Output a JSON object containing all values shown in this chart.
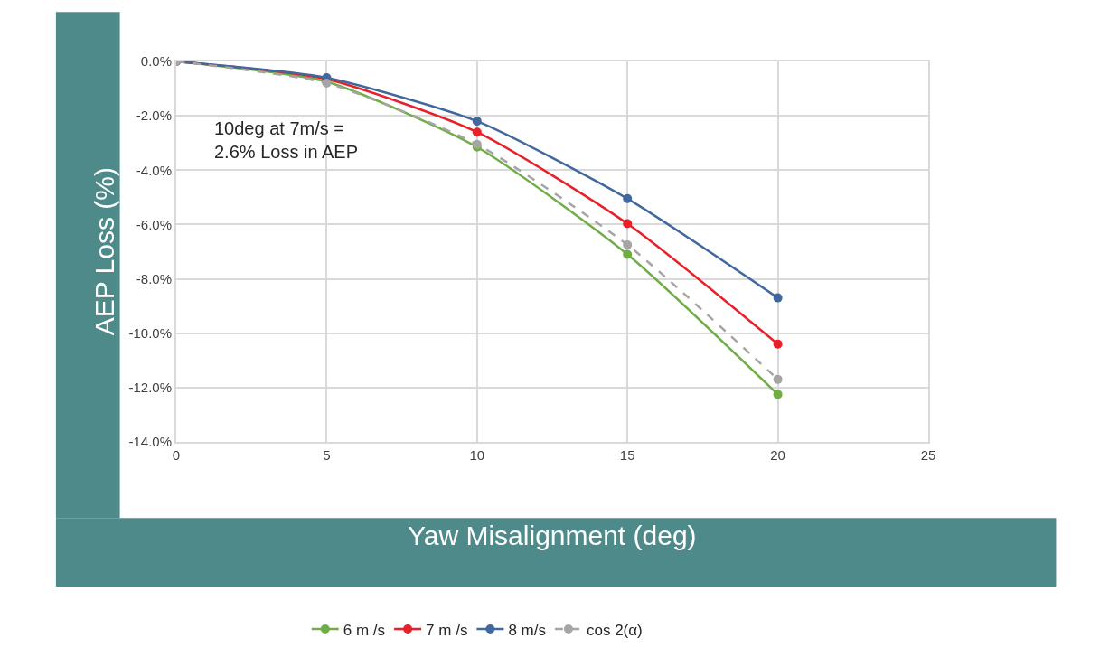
{
  "chart_data": {
    "type": "line",
    "xlabel": "Yaw Misalignment (deg)",
    "ylabel": "AEP Loss (%)",
    "x": [
      0,
      5,
      10,
      15,
      20
    ],
    "series": [
      {
        "name": "6 m /s",
        "color": "#70ad47",
        "values": [
          0,
          -0.75,
          -3.15,
          -7.1,
          -12.25
        ]
      },
      {
        "name": "7 m /s",
        "color": "#e8202a",
        "values": [
          0,
          -0.65,
          -2.6,
          -5.97,
          -10.4
        ]
      },
      {
        "name": "8 m/s",
        "color": "#41689e",
        "values": [
          0,
          -0.6,
          -2.2,
          -5.05,
          -8.7
        ]
      },
      {
        "name": "cos 2(α)",
        "color": "#a5a5a5",
        "values": [
          0,
          -0.8,
          -3.05,
          -6.75,
          -11.7
        ],
        "line_style": "dashed"
      }
    ],
    "xlim": [
      0,
      25
    ],
    "xticks": [
      0,
      5,
      10,
      15,
      20,
      25
    ],
    "ylim": [
      -14,
      0
    ],
    "yticks": [
      {
        "value": 0,
        "label": "0.0%"
      },
      {
        "value": -2,
        "label": "-2.0%"
      },
      {
        "value": -4,
        "label": "-4.0%"
      },
      {
        "value": -6,
        "label": "-6.0%"
      },
      {
        "value": -8,
        "label": "-8.0%"
      },
      {
        "value": -10,
        "label": "-10.0%"
      },
      {
        "value": -12,
        "label": "-12.0%"
      },
      {
        "value": -14,
        "label": "-14.0%"
      }
    ],
    "grid": true,
    "legend": "bottom",
    "marker": "circle",
    "line_style": "solid",
    "annotations": [
      "10deg at 7m/s =\n2.6% Loss in AEP"
    ]
  }
}
